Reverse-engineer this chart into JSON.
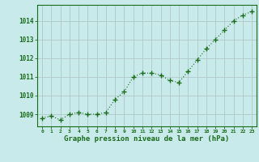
{
  "x": [
    0,
    1,
    2,
    3,
    4,
    5,
    6,
    7,
    8,
    9,
    10,
    11,
    12,
    13,
    14,
    15,
    16,
    17,
    18,
    19,
    20,
    21,
    22,
    23
  ],
  "y": [
    1008.8,
    1008.9,
    1008.7,
    1009.0,
    1009.1,
    1009.0,
    1009.0,
    1009.1,
    1009.8,
    1010.2,
    1011.0,
    1011.2,
    1011.2,
    1011.1,
    1010.8,
    1010.7,
    1011.3,
    1011.9,
    1012.5,
    1013.0,
    1013.5,
    1014.0,
    1014.3,
    1014.5
  ],
  "line_color": "#1a6b1a",
  "marker_color": "#1a6b1a",
  "bg_color": "#c8eaea",
  "grid_color": "#b0c8c8",
  "xlabel": "Graphe pression niveau de la mer (hPa)",
  "ytick_labels": [
    "1009",
    "1010",
    "1011",
    "1012",
    "1013",
    "1014"
  ],
  "ytick_values": [
    1009,
    1010,
    1011,
    1012,
    1013,
    1014
  ],
  "ylim": [
    1008.35,
    1014.85
  ],
  "xlim": [
    -0.5,
    23.5
  ],
  "xtick_labels": [
    "0",
    "1",
    "2",
    "3",
    "4",
    "5",
    "6",
    "7",
    "8",
    "9",
    "10",
    "11",
    "12",
    "13",
    "14",
    "15",
    "16",
    "17",
    "18",
    "19",
    "20",
    "21",
    "22",
    "23"
  ],
  "text_color": "#1a6b1a",
  "border_color": "#1a6b1a"
}
